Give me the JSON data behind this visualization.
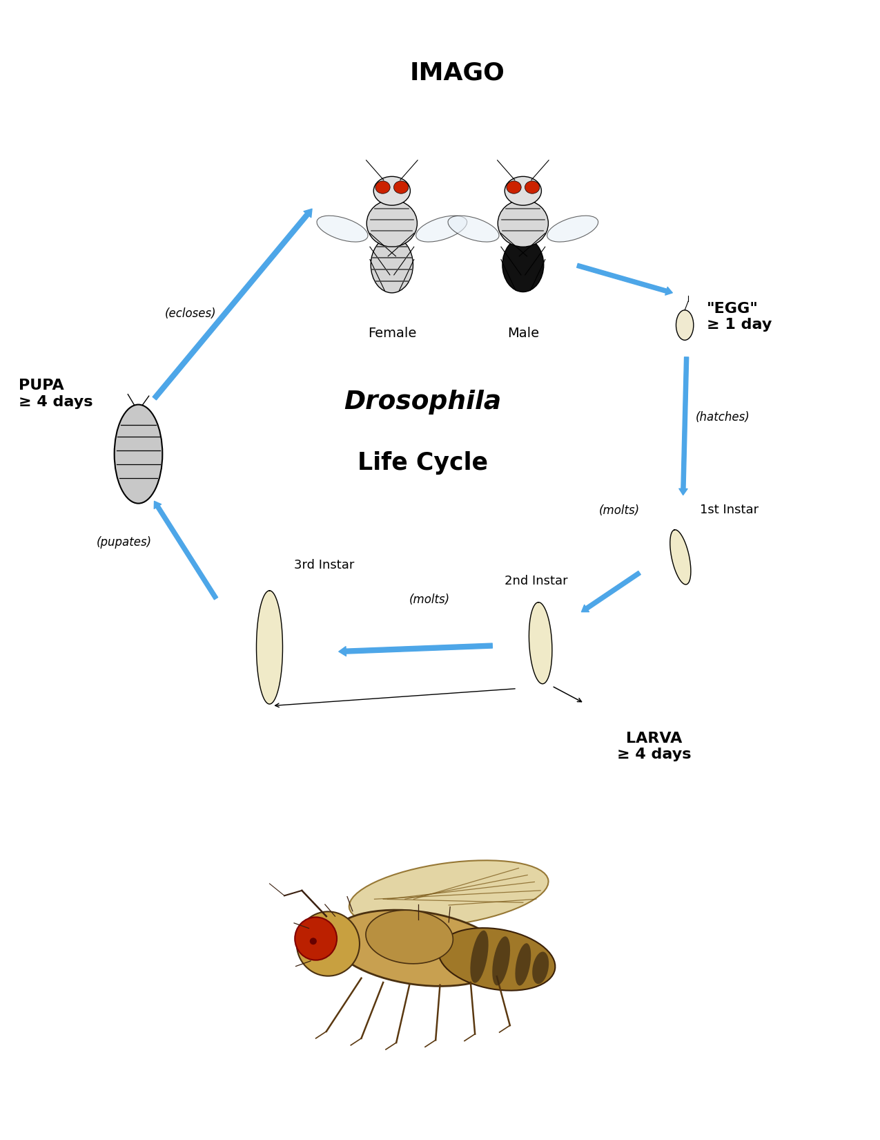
{
  "title_top": "IMAGO",
  "title_center_italic": "Drosophila",
  "title_center_normal": "Life Cycle",
  "label_female": "Female",
  "label_male": "Male",
  "label_pupa": "PUPA\n≥ 4 days",
  "label_egg": "\"EGG\"\n≥ 1 day",
  "label_larva": "LARVA\n≥ 4 days",
  "label_1st_instar": "1st Instar",
  "label_2nd_instar": "2nd Instar",
  "label_3rd_instar": "3rd Instar",
  "label_ecloses": "(ecloses)",
  "label_hatches": "(hatches)",
  "label_molts_1": "(molts)",
  "label_molts_2": "(molts)",
  "label_pupates": "(pupates)",
  "arrow_color": "#4da6e8",
  "bg_color": "#ffffff",
  "text_color": "#000000",
  "pupa_color": "#c8c8c8",
  "egg_color": "#f0ead0",
  "larva_color": "#f0eac8",
  "figsize": [
    12.75,
    16.5
  ],
  "dpi": 100
}
